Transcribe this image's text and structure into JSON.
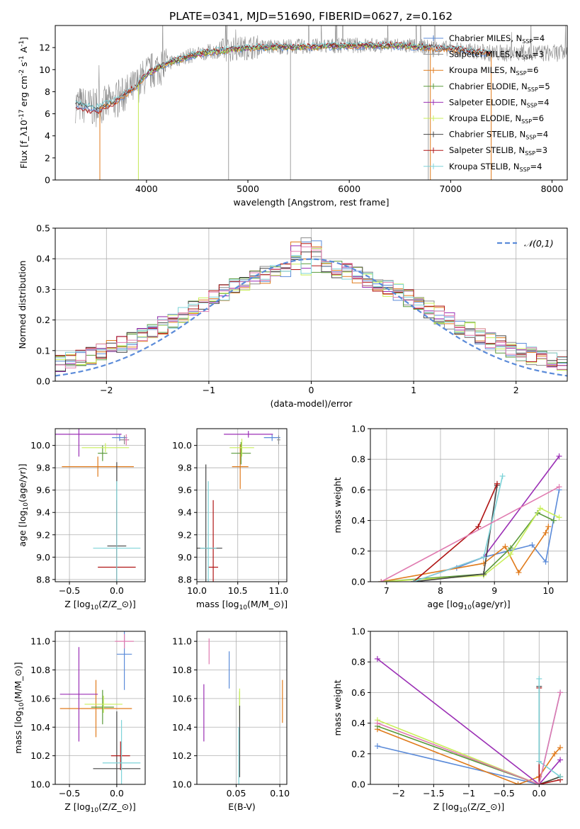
{
  "title": "PLATE=0341, MJD=51690, FIBERID=0627, z=0.162",
  "colors": {
    "Chabrier MILES": "#5b8bd9",
    "Salpeter MILES": "#8a8a8a",
    "Kroupa MILES": "#e07b1c",
    "Chabrier ELODIE": "#5a9a3a",
    "Salpeter ELODIE": "#9b2fb5",
    "Kroupa ELODIE": "#c9ef5a",
    "Chabrier STELIB": "#444444",
    "Salpeter STELIB": "#b01515",
    "Kroupa STELIB": "#7dd3d8",
    "normal": "#5b8bd9",
    "extra_pink": "#e07bb0"
  },
  "chart_data": [
    {
      "id": "spectrum",
      "type": "line",
      "xlabel": "wavelength [Angstrom, rest frame]",
      "ylabel": "Flux [f$_\\lambda$10$^{-17}$ erg cm$^{-2}$ s$^{-1}$ A$^{-1}$]",
      "xlim": [
        3100,
        8150
      ],
      "ylim": [
        0,
        14
      ],
      "xticks": [
        4000,
        5000,
        6000,
        7000,
        8000
      ],
      "yticks": [
        0,
        2,
        4,
        6,
        8,
        10,
        12
      ],
      "legend": [
        {
          "label": "Chabrier MILES",
          "nssp": "4",
          "color": "#5b8bd9"
        },
        {
          "label": "Salpeter MILES",
          "nssp": "3",
          "color": "#8a8a8a"
        },
        {
          "label": "Kroupa MILES",
          "nssp": "6",
          "color": "#e07b1c"
        },
        {
          "label": "Chabrier ELODIE",
          "nssp": "5",
          "color": "#5a9a3a"
        },
        {
          "label": "Salpeter ELODIE",
          "nssp": "4",
          "color": "#9b2fb5"
        },
        {
          "label": "Kroupa ELODIE",
          "nssp": "6",
          "color": "#c9ef5a"
        },
        {
          "label": "Chabrier STELIB",
          "nssp": "4",
          "color": "#444444"
        },
        {
          "label": "Salpeter STELIB",
          "nssp": "3",
          "color": "#b01515"
        },
        {
          "label": "Kroupa STELIB",
          "nssp": "4",
          "color": "#7dd3d8"
        }
      ],
      "legend_placement": "right",
      "model_continuum": [
        [
          3300,
          6.9
        ],
        [
          3500,
          6.5
        ],
        [
          3700,
          7.2
        ],
        [
          3900,
          8.5
        ],
        [
          4000,
          9.6
        ],
        [
          4200,
          10.6
        ],
        [
          4400,
          11.2
        ],
        [
          4600,
          11.6
        ],
        [
          4800,
          11.8
        ],
        [
          5000,
          12.0
        ],
        [
          5300,
          12.1
        ],
        [
          5600,
          12.1
        ],
        [
          6000,
          12.2
        ],
        [
          6500,
          12.2
        ],
        [
          7000,
          11.9
        ],
        [
          7400,
          11.5
        ]
      ]
    },
    {
      "id": "residuals",
      "type": "line",
      "xlabel": "(data-model)/error",
      "ylabel": "Normed distribution",
      "xlim": [
        -2.5,
        2.5
      ],
      "ylim": [
        0,
        0.5
      ],
      "xticks": [
        -2,
        -1,
        0,
        1,
        2
      ],
      "yticks": [
        0.0,
        0.1,
        0.2,
        0.3,
        0.4,
        0.5
      ],
      "grid": true,
      "legend": "$\\mathcal{N}(0,1)$",
      "legend_placement": "top-right",
      "bin_width": 0.1
    },
    {
      "id": "age_vs_Z",
      "type": "scatter",
      "xlabel": "Z [log$_{10}$($Z/Z_\\odot$)]",
      "ylabel": "age  [log$_{10}$($age/yr$)]",
      "xlim": [
        -0.65,
        0.3
      ],
      "ylim": [
        8.78,
        10.15
      ],
      "xticks": [
        -0.5,
        0.0
      ],
      "yticks": [
        8.8,
        9.0,
        9.2,
        9.4,
        9.6,
        9.8,
        10.0
      ],
      "grid": true,
      "points": [
        {
          "model": "Chabrier MILES",
          "x": 0.03,
          "y": 10.07,
          "xerr": 0.08,
          "yerr": 0.03
        },
        {
          "model": "Salpeter MILES",
          "x": 0.08,
          "y": 10.05,
          "xerr": 0.05,
          "yerr": 0.04
        },
        {
          "model": "Kroupa MILES",
          "x": -0.2,
          "y": 9.81,
          "xerr": 0.38,
          "yerr": 0.09
        },
        {
          "model": "Chabrier ELODIE",
          "x": -0.15,
          "y": 9.93,
          "xerr": 0.05,
          "yerr": 0.07
        },
        {
          "model": "Salpeter ELODIE",
          "x": -0.4,
          "y": 10.1,
          "xerr": 0.45,
          "yerr": 0.2
        },
        {
          "model": "Kroupa ELODIE",
          "x": -0.12,
          "y": 9.98,
          "xerr": 0.25,
          "yerr": 0.04
        },
        {
          "model": "Chabrier STELIB",
          "x": 0.0,
          "y": 9.1,
          "xerr": 0.1,
          "yerr": 0.75
        },
        {
          "model": "Salpeter STELIB",
          "x": 0.0,
          "y": 8.91,
          "xerr": 0.2,
          "yerr": 0.6
        },
        {
          "model": "Kroupa STELIB",
          "x": 0.0,
          "y": 9.08,
          "xerr": 0.25,
          "yerr": 0.6
        },
        {
          "model": "extra",
          "x": 0.1,
          "y": 10.05,
          "xerr": 0.02,
          "yerr": 0.05
        }
      ]
    },
    {
      "id": "age_vs_mass",
      "type": "scatter",
      "xlabel": "mass [log$_{10}$($M/M_\\odot$)]",
      "ylabel": "",
      "xlim": [
        10.0,
        11.1
      ],
      "ylim": [
        8.78,
        10.15
      ],
      "xticks": [
        10.0,
        10.5,
        11.0
      ],
      "yticks": [
        8.8,
        9.0,
        9.2,
        9.4,
        9.6,
        9.8,
        10.0
      ],
      "grid": true,
      "points": [
        {
          "model": "Chabrier MILES",
          "x": 10.92,
          "y": 10.07,
          "xerr": 0.1,
          "yerr": 0.03
        },
        {
          "model": "Salpeter MILES",
          "x": 11.0,
          "y": 10.05,
          "xerr": 0.02,
          "yerr": 0.04
        },
        {
          "model": "Kroupa MILES",
          "x": 10.53,
          "y": 9.81,
          "xerr": 0.1,
          "yerr": 0.2
        },
        {
          "model": "Chabrier ELODIE",
          "x": 10.54,
          "y": 9.93,
          "xerr": 0.12,
          "yerr": 0.1
        },
        {
          "model": "Salpeter ELODIE",
          "x": 10.63,
          "y": 10.1,
          "xerr": 0.3,
          "yerr": 0.03
        },
        {
          "model": "Kroupa ELODIE",
          "x": 10.55,
          "y": 9.98,
          "xerr": 0.15,
          "yerr": 0.08
        },
        {
          "model": "Chabrier STELIB",
          "x": 10.11,
          "y": 9.08,
          "xerr": 0.2,
          "yerr": 0.75
        },
        {
          "model": "Salpeter STELIB",
          "x": 10.2,
          "y": 8.91,
          "xerr": 0.06,
          "yerr": 0.6
        },
        {
          "model": "Kroupa STELIB",
          "x": 10.14,
          "y": 9.08,
          "xerr": 0.1,
          "yerr": 0.6
        }
      ]
    },
    {
      "id": "massweight_vs_age",
      "type": "line",
      "xlabel": "age  [log$_{10}$($age/yr$)]",
      "ylabel": "mass weight",
      "xlim": [
        6.7,
        10.35
      ],
      "ylim": [
        0.0,
        1.0
      ],
      "xticks": [
        7,
        8,
        9,
        10
      ],
      "yticks": [
        0.0,
        0.2,
        0.4,
        0.6,
        0.8,
        1.0
      ],
      "grid": true,
      "series": [
        {
          "model": "Chabrier MILES",
          "x": [
            8.3,
            8.8,
            9.7,
            9.95,
            10.2
          ],
          "y": [
            0.09,
            0.16,
            0.24,
            0.13,
            0.6
          ]
        },
        {
          "model": "Kroupa MILES",
          "x": [
            6.9,
            8.8,
            9.2,
            9.45,
            9.95,
            10.0
          ],
          "y": [
            0.0,
            0.12,
            0.23,
            0.06,
            0.32,
            0.36
          ]
        },
        {
          "model": "Chabrier ELODIE",
          "x": [
            6.9,
            8.8,
            9.3,
            9.8,
            10.1
          ],
          "y": [
            0.0,
            0.05,
            0.22,
            0.45,
            0.4
          ]
        },
        {
          "model": "Salpeter ELODIE",
          "x": [
            7.5,
            8.8,
            10.2
          ],
          "y": [
            0.0,
            0.16,
            0.82
          ]
        },
        {
          "model": "Kroupa ELODIE",
          "x": [
            6.9,
            8.8,
            9.3,
            9.85,
            10.2
          ],
          "y": [
            0.0,
            0.04,
            0.18,
            0.48,
            0.42
          ]
        },
        {
          "model": "Chabrier STELIB",
          "x": [
            7.5,
            8.8,
            9.05
          ],
          "y": [
            0.0,
            0.05,
            0.63
          ]
        },
        {
          "model": "Salpeter STELIB",
          "x": [
            7.5,
            8.7,
            9.05
          ],
          "y": [
            0.0,
            0.36,
            0.64
          ]
        },
        {
          "model": "Kroupa STELIB",
          "x": [
            7.5,
            8.8,
            9.15
          ],
          "y": [
            0.0,
            0.16,
            0.69
          ]
        },
        {
          "model": "extra",
          "x": [
            6.9,
            10.2
          ],
          "y": [
            0.0,
            0.62
          ]
        }
      ]
    },
    {
      "id": "mass_vs_Z",
      "type": "scatter",
      "xlabel": "Z [log$_{10}$($Z/Z_\\odot$)]",
      "ylabel": "mass [log$_{10}$($M/M_\\odot$)]",
      "xlim": [
        -0.65,
        0.3
      ],
      "ylim": [
        10.0,
        11.07
      ],
      "xticks": [
        -0.5,
        0.0
      ],
      "yticks": [
        10.0,
        10.2,
        10.4,
        10.6,
        10.8,
        11.0
      ],
      "grid": true,
      "points": [
        {
          "model": "Chabrier MILES",
          "x": 0.08,
          "y": 10.91,
          "xerr": 0.08,
          "yerr": 0.25
        },
        {
          "model": "Kroupa MILES",
          "x": -0.22,
          "y": 10.53,
          "xerr": 0.38,
          "yerr": 0.2
        },
        {
          "model": "Chabrier ELODIE",
          "x": -0.15,
          "y": 10.54,
          "xerr": 0.12,
          "yerr": 0.12
        },
        {
          "model": "Salpeter ELODIE",
          "x": -0.4,
          "y": 10.63,
          "xerr": 0.2,
          "yerr": 0.33
        },
        {
          "model": "Kroupa ELODIE",
          "x": -0.14,
          "y": 10.56,
          "xerr": 0.2,
          "yerr": 0.06
        },
        {
          "model": "Chabrier STELIB",
          "x": 0.0,
          "y": 10.11,
          "xerr": 0.25,
          "yerr": 0.4
        },
        {
          "model": "Salpeter STELIB",
          "x": 0.04,
          "y": 10.2,
          "xerr": 0.1,
          "yerr": 0.1
        },
        {
          "model": "Kroupa STELIB",
          "x": 0.05,
          "y": 10.15,
          "xerr": 0.2,
          "yerr": 0.3
        },
        {
          "model": "extra",
          "x": 0.08,
          "y": 11.0,
          "xerr": 0.1,
          "yerr": 0.05
        }
      ]
    },
    {
      "id": "mass_vs_EBV",
      "type": "scatter",
      "xlabel": "E(B-V)",
      "ylabel": "",
      "xlim": [
        0.005,
        0.108
      ],
      "ylim": [
        10.0,
        11.07
      ],
      "xticks": [
        0.05,
        0.1
      ],
      "yticks": [
        10.0,
        10.2,
        10.4,
        10.6,
        10.8,
        11.0
      ],
      "grid": true,
      "points": [
        {
          "model": "Chabrier MILES",
          "x": 0.042,
          "y": 10.8,
          "xerr": 0,
          "yerr": 0.13
        },
        {
          "model": "Kroupa MILES",
          "x": 0.103,
          "y": 10.58,
          "xerr": 0,
          "yerr": 0.15
        },
        {
          "model": "Chabrier ELODIE",
          "x": 0.054,
          "y": 10.55,
          "xerr": 0,
          "yerr": 0.1
        },
        {
          "model": "Salpeter ELODIE",
          "x": 0.013,
          "y": 10.5,
          "xerr": 0,
          "yerr": 0.2
        },
        {
          "model": "Kroupa ELODIE",
          "x": 0.054,
          "y": 10.55,
          "xerr": 0,
          "yerr": 0.12
        },
        {
          "model": "Chabrier STELIB",
          "x": 0.054,
          "y": 10.3,
          "xerr": 0,
          "yerr": 0.25
        },
        {
          "model": "Kroupa STELIB",
          "x": 0.053,
          "y": 10.2,
          "xerr": 0,
          "yerr": 0.2
        },
        {
          "model": "extra",
          "x": 0.019,
          "y": 10.93,
          "xerr": 0,
          "yerr": 0.09
        }
      ]
    },
    {
      "id": "massweight_vs_Z",
      "type": "line",
      "xlabel": "Z [log$_{10}$($Z/Z_\\odot$)]",
      "ylabel": "mass weight",
      "xlim": [
        -2.4,
        0.4
      ],
      "ylim": [
        0.0,
        1.0
      ],
      "xticks": [
        -2.0,
        -1.5,
        -1.0,
        -0.5,
        0.0
      ],
      "yticks": [
        0.0,
        0.2,
        0.4,
        0.6,
        0.8,
        1.0
      ],
      "grid": true,
      "series": [
        {
          "model": "Chabrier MILES",
          "x": [
            -2.3,
            0.0,
            0.3
          ],
          "y": [
            0.25,
            0.0,
            0.6
          ]
        },
        {
          "model": "Kroupa MILES",
          "x": [
            -2.3,
            -0.3,
            0.0,
            0.22,
            0.3
          ],
          "y": [
            0.36,
            0.0,
            0.05,
            0.2,
            0.24
          ]
        },
        {
          "model": "Chabrier ELODIE",
          "x": [
            -2.3,
            0.0,
            0.3
          ],
          "y": [
            0.38,
            0.0,
            0.05
          ]
        },
        {
          "model": "Salpeter ELODIE",
          "x": [
            -2.3,
            0.0,
            0.3
          ],
          "y": [
            0.82,
            0.0,
            0.16
          ]
        },
        {
          "model": "Kroupa ELODIE",
          "x": [
            -2.3,
            0.0,
            0.3
          ],
          "y": [
            0.42,
            0.0,
            0.05
          ]
        },
        {
          "model": "Chabrier STELIB",
          "x": [
            0.0,
            0.0,
            0.3
          ],
          "y": [
            0.64,
            0.0,
            0.05
          ]
        },
        {
          "model": "Salpeter STELIB",
          "x": [
            0.0,
            0.0,
            0.3
          ],
          "y": [
            0.63,
            0.0,
            0.03
          ]
        },
        {
          "model": "Kroupa STELIB",
          "x": [
            0.0,
            0.0,
            0.3
          ],
          "y": [
            0.69,
            0.15,
            0.05
          ]
        },
        {
          "model": "extra",
          "x": [
            -2.3,
            0.0,
            0.3
          ],
          "y": [
            0.4,
            0.0,
            0.6
          ]
        }
      ]
    }
  ]
}
